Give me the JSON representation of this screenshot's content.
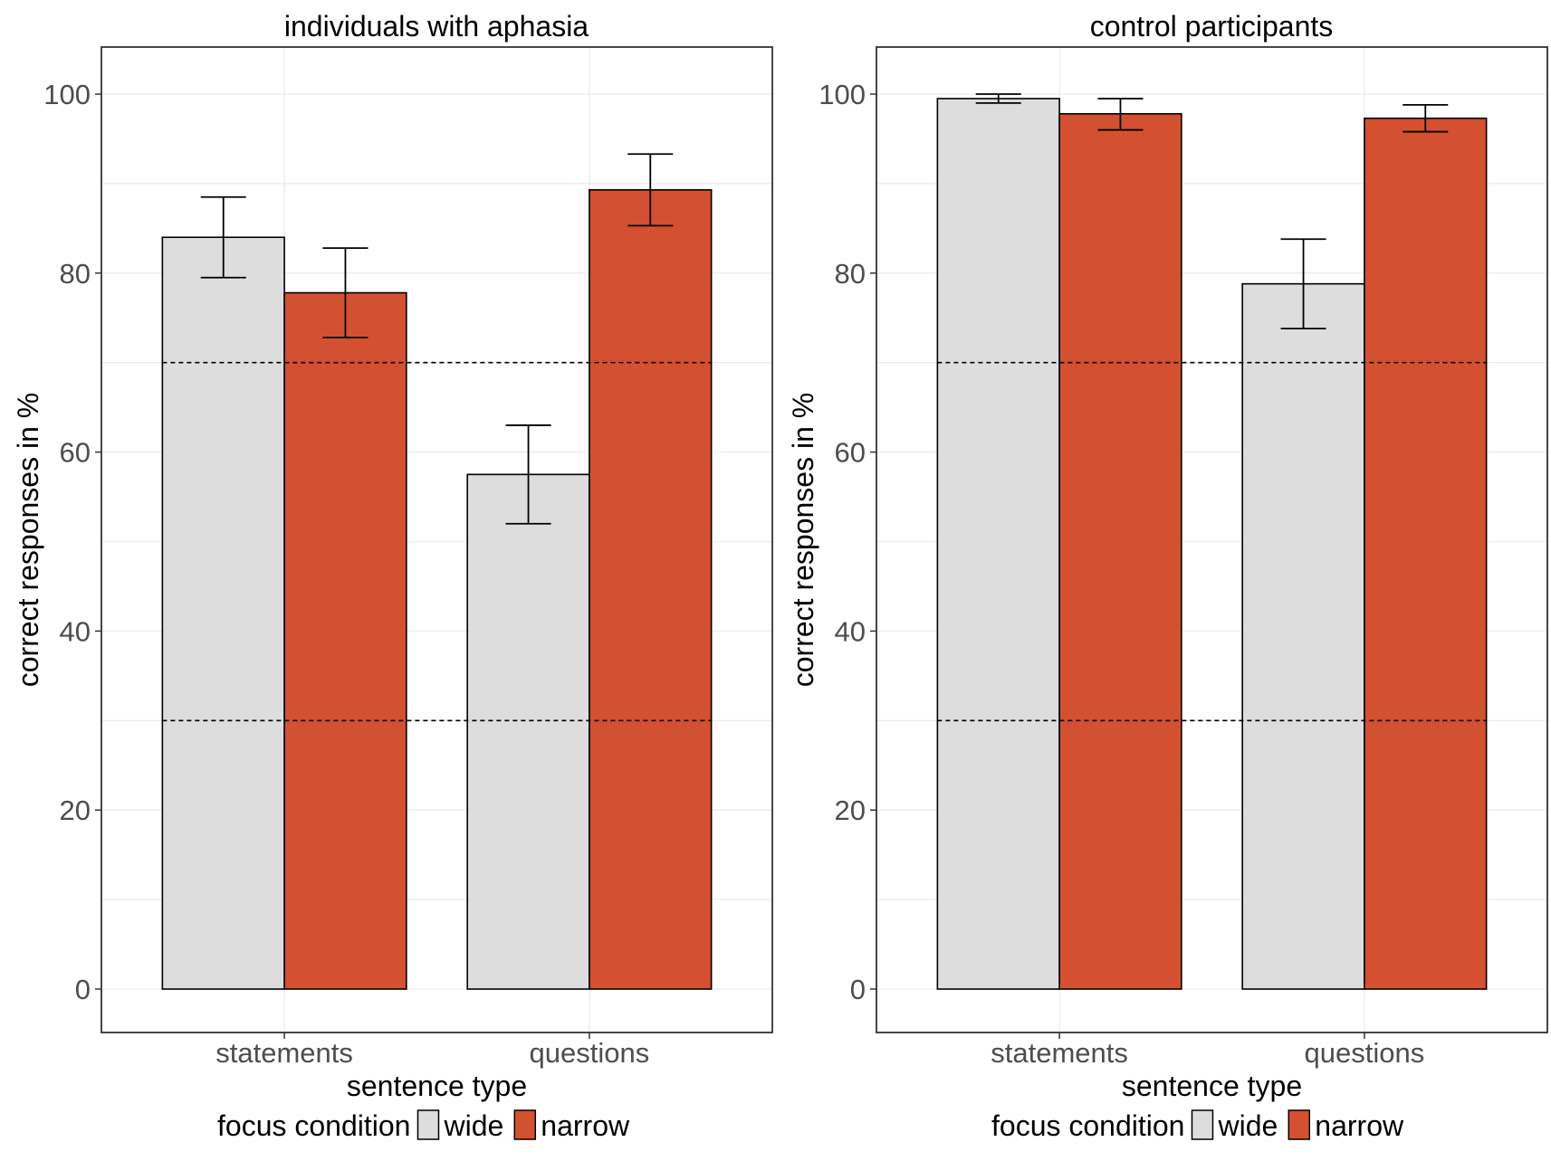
{
  "chart_data": [
    {
      "type": "bar",
      "title": "individuals with aphasia",
      "xlabel": "sentence type",
      "ylabel": "correct responses in %",
      "categories": [
        "statements",
        "questions"
      ],
      "series": [
        {
          "name": "wide",
          "color": "#DDDDDD",
          "values": [
            84,
            57.5
          ],
          "error_low": [
            79.5,
            52
          ],
          "error_high": [
            88.5,
            63
          ]
        },
        {
          "name": "narrow",
          "color": "#D35130",
          "values": [
            77.8,
            89.3
          ],
          "error_low": [
            72.8,
            85.3
          ],
          "error_high": [
            82.8,
            93.3
          ]
        }
      ],
      "reference_lines": [
        30,
        70
      ],
      "ylim": [
        0,
        105
      ],
      "yticks": [
        0,
        20,
        40,
        60,
        80,
        100
      ],
      "grid": true
    },
    {
      "type": "bar",
      "title": "control participants",
      "xlabel": "sentence type",
      "ylabel": "correct responses in %",
      "categories": [
        "statements",
        "questions"
      ],
      "series": [
        {
          "name": "wide",
          "color": "#DDDDDD",
          "values": [
            99.5,
            78.8
          ],
          "error_low": [
            99,
            73.8
          ],
          "error_high": [
            100,
            83.8
          ]
        },
        {
          "name": "narrow",
          "color": "#D35130",
          "values": [
            97.8,
            97.3
          ],
          "error_low": [
            96,
            95.8
          ],
          "error_high": [
            99.5,
            98.8
          ]
        }
      ],
      "reference_lines": [
        30,
        70
      ],
      "ylim": [
        0,
        105
      ],
      "yticks": [
        0,
        20,
        40,
        60,
        80,
        100
      ],
      "grid": true
    }
  ],
  "legend": {
    "title": "focus condition",
    "entries": [
      {
        "label": "wide",
        "color": "#DDDDDD"
      },
      {
        "label": "narrow",
        "color": "#D35130"
      }
    ]
  }
}
